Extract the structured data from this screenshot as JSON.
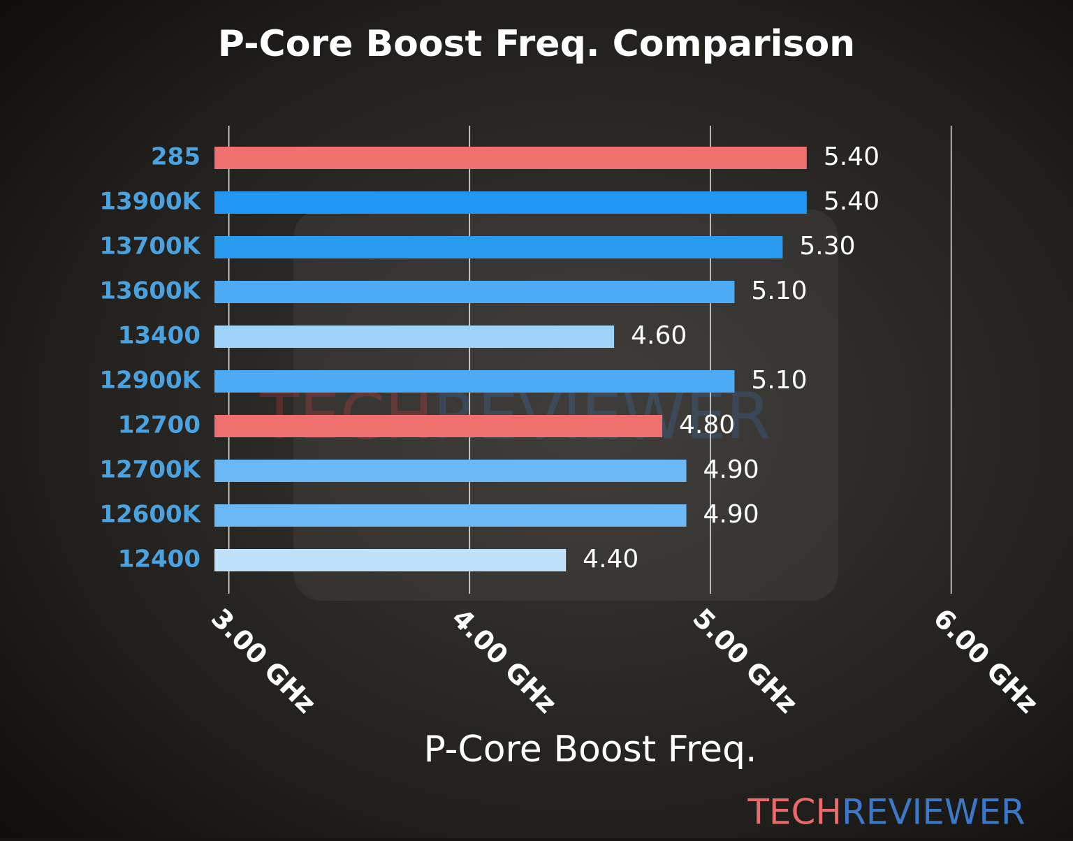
{
  "chart_data": {
    "type": "barh",
    "title": "P-Core Boost Freq. Comparison",
    "xlabel": "P-Core Boost Freq.",
    "categories": [
      "285",
      "13900K",
      "13700K",
      "13600K",
      "13400",
      "12900K",
      "12700",
      "12700K",
      "12600K",
      "12400"
    ],
    "values": [
      5.4,
      5.4,
      5.3,
      5.1,
      4.6,
      5.1,
      4.8,
      4.9,
      4.9,
      4.4
    ],
    "value_labels": [
      "5.40",
      "5.40",
      "5.30",
      "5.10",
      "4.60",
      "5.10",
      "4.80",
      "4.90",
      "4.90",
      "4.40"
    ],
    "colors": [
      "#f07070",
      "#2196f3",
      "#2a9cf0",
      "#4dacf5",
      "#a0d3fa",
      "#4dacf5",
      "#f07070",
      "#6ab8f5",
      "#6ab8f5",
      "#bfe1fc"
    ],
    "xlim": [
      2.94,
      6.3
    ],
    "xticks": [
      {
        "value": 3,
        "label": "3.00 GHz"
      },
      {
        "value": 4,
        "label": "4.00 GHz"
      },
      {
        "value": 5,
        "label": "5.00 GHz"
      },
      {
        "value": 6,
        "label": "6.00 GHz"
      }
    ],
    "grid": true
  },
  "branding": {
    "part1": "TECH",
    "part2": "REVIEWER"
  }
}
